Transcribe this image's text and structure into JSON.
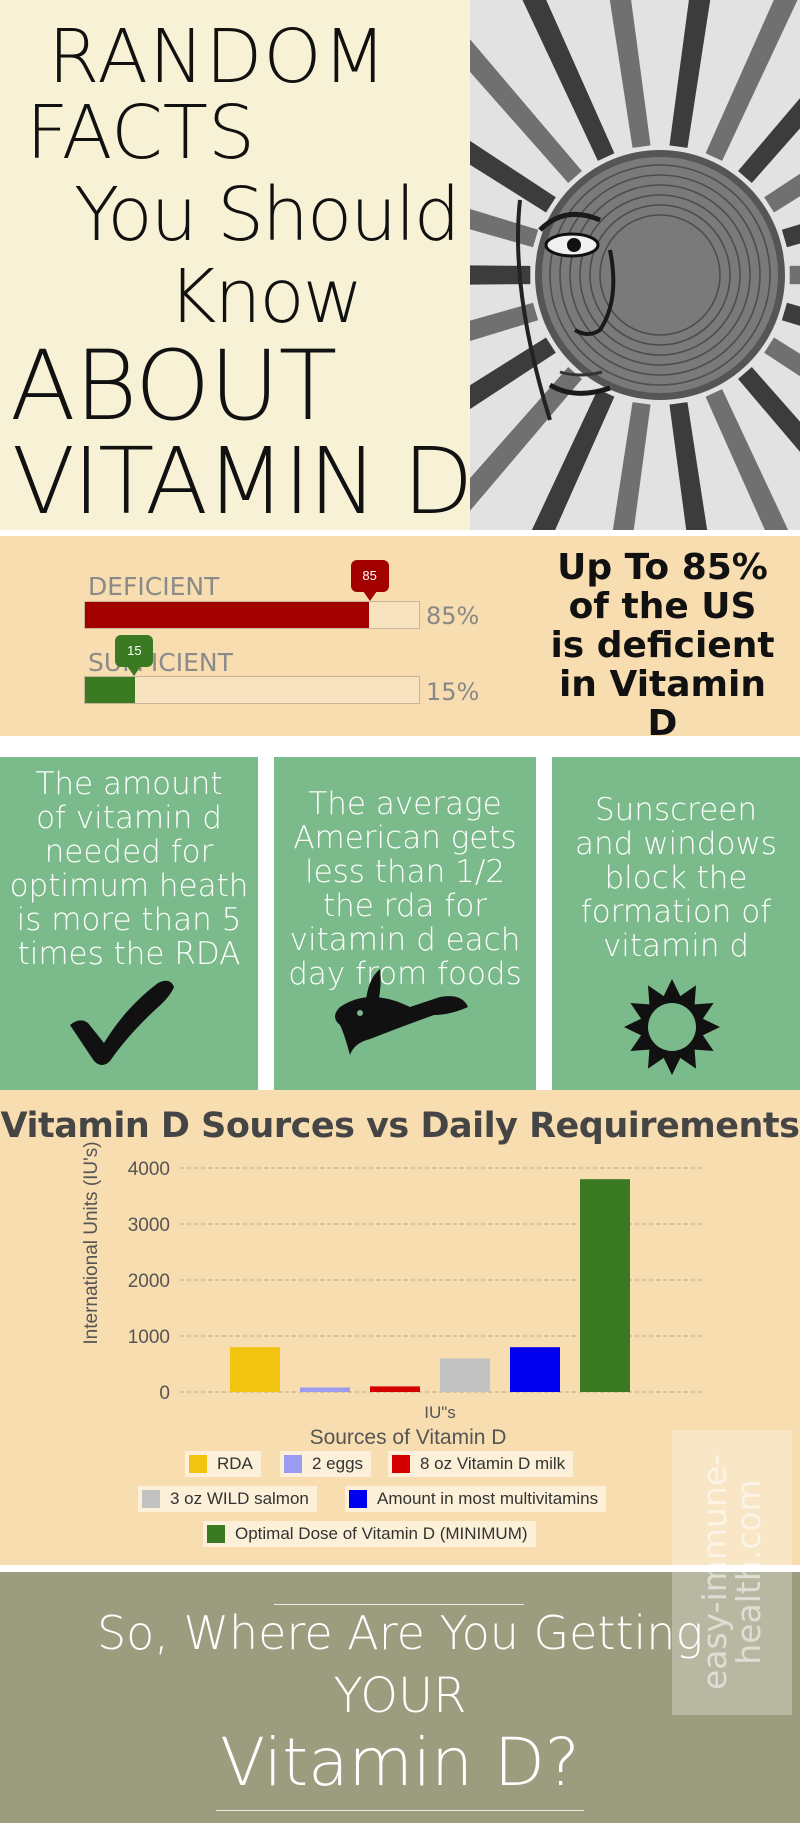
{
  "header": {
    "line1": "RANDOM",
    "line2": "FACTS",
    "line3": "You Should",
    "line4": "Know",
    "line5": "ABOUT",
    "line6": "VITAMIN D",
    "art_icon": "sun-face-icon"
  },
  "deficiency": {
    "deficient": {
      "label": "DEFICIENT",
      "value": 85,
      "bubble": "85",
      "pct_text": "85%",
      "color": "#a30000"
    },
    "sufficient": {
      "label": "SUFFICIENT",
      "value": 15,
      "bubble": "15",
      "pct_text": "15%",
      "color": "#3a7a23"
    },
    "statement_lines": [
      "Up To 85%",
      "of the US",
      "is deficient",
      "in Vitamin D"
    ]
  },
  "facts": [
    {
      "lines": [
        "The amount",
        "of vitamin d",
        "needed for",
        "optimum heath",
        "is more than 5",
        "times the RDA"
      ],
      "icon": "checkmark-icon"
    },
    {
      "lines": [
        "The average",
        "American gets",
        "less than 1/2",
        "the rda for",
        "vitamin d each",
        "day from foods"
      ],
      "icon": "fish-icon"
    },
    {
      "lines": [
        "Sunscreen",
        "and windows",
        "block the",
        "formation of",
        "vitamin d"
      ],
      "icon": "sun-icon"
    }
  ],
  "chart_data": {
    "type": "bar",
    "title": "Vitamin D Sources vs Daily Requirements",
    "ylabel": "International Units (IU's)",
    "xlabel": "Sources of Vitamin D",
    "category_label": "IU\"s",
    "ylim": [
      0,
      4000
    ],
    "yticks": [
      0,
      1000,
      2000,
      3000,
      4000
    ],
    "grid": true,
    "series": [
      {
        "name": "RDA",
        "value": 800,
        "color": "#f1c40f"
      },
      {
        "name": "2 eggs",
        "value": 80,
        "color": "#9b9bef"
      },
      {
        "name": "8 oz Vitamin D milk",
        "value": 100,
        "color": "#d40000"
      },
      {
        "name": "3 oz WILD salmon",
        "value": 600,
        "color": "#c2c2c2"
      },
      {
        "name": "Amount in most multivitamins",
        "value": 800,
        "color": "#0000ee"
      },
      {
        "name": "Optimal Dose of Vitamin D (MINIMUM)",
        "value": 3800,
        "color": "#3a7a23"
      }
    ]
  },
  "watermark": {
    "lines": [
      "easy-immune-",
      "health.com"
    ]
  },
  "footer": {
    "line1": "So, Where Are You Getting",
    "line2": "YOUR",
    "line3": "Vitamin D?"
  }
}
